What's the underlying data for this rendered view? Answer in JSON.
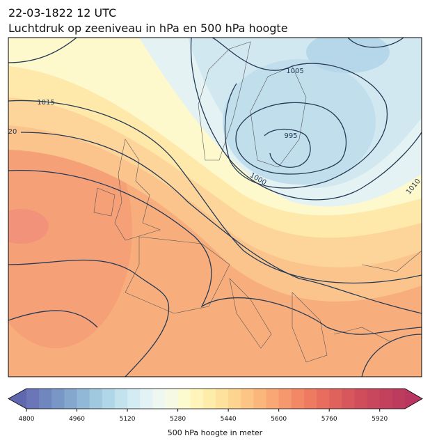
{
  "header": {
    "title_line1": "22-03-1822 12 UTC",
    "title_line2": "Luchtdruk op zeeniveau in hPa en 500 hPa hoogte"
  },
  "map": {
    "contour_labels": [
      "1005",
      "1015",
      "20",
      "995",
      "1000",
      "1010"
    ]
  },
  "colorbar": {
    "label": "500 hPa hoogte in meter",
    "lim": [
      4800,
      6000
    ],
    "ticks": [
      4800,
      4960,
      5120,
      5280,
      5440,
      5600,
      5760,
      5920
    ],
    "colors": [
      "#6a76b8",
      "#6f86bf",
      "#7896c6",
      "#84a7ce",
      "#91b8d6",
      "#a0c8df",
      "#b0d7e7",
      "#c2e2ee",
      "#d3ebf2",
      "#e3f2f4",
      "#eef7f0",
      "#f6fae4",
      "#fcfbd0",
      "#fff5bb",
      "#feecaa",
      "#fde19c",
      "#fdd390",
      "#fcc585",
      "#fbb67c",
      "#f9a774",
      "#f6986d",
      "#f38866",
      "#ee7a62",
      "#e86d5f",
      "#e0625d",
      "#d8575c",
      "#d04e5c",
      "#c9475c",
      "#c3415d",
      "#bd3c5e"
    ],
    "under_color": "#5f68ac",
    "over_color": "#b8365f"
  }
}
